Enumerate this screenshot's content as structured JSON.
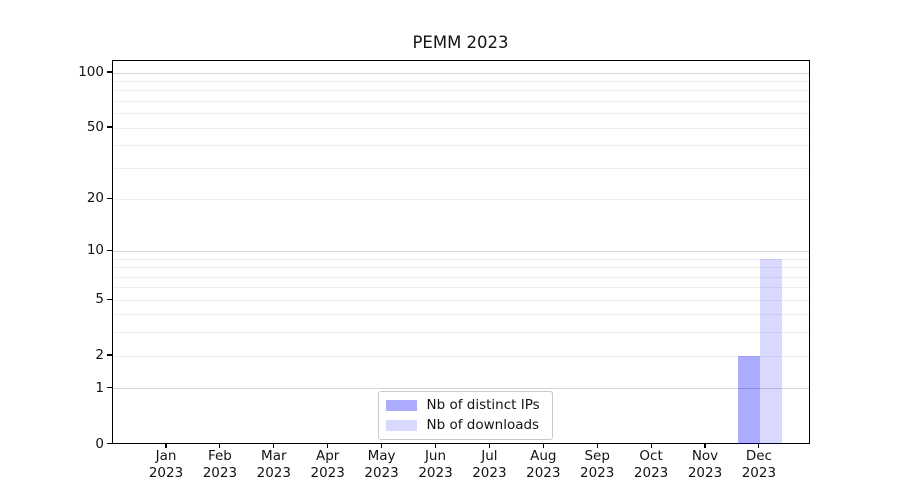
{
  "chart_data": {
    "type": "bar",
    "title": "PEMM 2023",
    "categories": [
      "Jan",
      "Feb",
      "Mar",
      "Apr",
      "May",
      "Jun",
      "Jul",
      "Aug",
      "Sep",
      "Oct",
      "Nov",
      "Dec"
    ],
    "x_tick_year": "2023",
    "series": [
      {
        "name": "Nb of distinct IPs",
        "base_color": "#0000ff",
        "alpha": 0.33,
        "values": [
          0,
          0,
          0,
          0,
          0,
          0,
          0,
          0,
          0,
          0,
          0,
          2
        ]
      },
      {
        "name": "Nb of downloads",
        "base_color": "#0000ff",
        "alpha": 0.15,
        "values": [
          0,
          0,
          0,
          0,
          0,
          0,
          0,
          0,
          0,
          0,
          0,
          9
        ]
      }
    ],
    "yscale": "log1p",
    "ylim": [
      0,
      117
    ],
    "y_tick_labels": [
      100,
      50,
      20,
      10,
      5,
      2,
      1,
      0
    ],
    "y_gridlines_major": [
      1,
      10,
      100
    ],
    "y_gridlines_minor": [
      2,
      3,
      4,
      5,
      6,
      7,
      8,
      9,
      20,
      30,
      40,
      50,
      60,
      70,
      80,
      90
    ],
    "grid": true,
    "legend_position": "lower center"
  },
  "colors": {
    "grid_major": "#d6d6d6",
    "grid_minor": "#eeeeee",
    "spine": "#000000",
    "text": "#141414",
    "legend_border": "#c9c9c9",
    "bar_distinct_ips_on_white": "#aaaafc",
    "bar_downloads_on_white": "#dadafb"
  }
}
